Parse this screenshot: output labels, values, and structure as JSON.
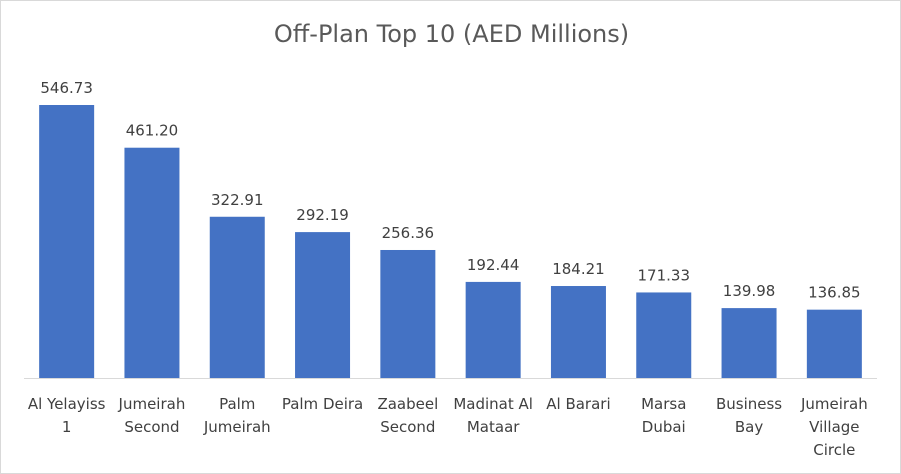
{
  "chart_data": {
    "type": "bar",
    "title": "Off-Plan Top 10 (AED Millions)",
    "categories": [
      [
        "Al Yelayiss",
        "1"
      ],
      [
        "Jumeirah",
        "Second"
      ],
      [
        "Palm",
        "Jumeirah"
      ],
      [
        "Palm Deira"
      ],
      [
        "Zaabeel",
        "Second"
      ],
      [
        "Madinat Al",
        "Mataar"
      ],
      [
        "Al Barari"
      ],
      [
        "Marsa",
        "Dubai"
      ],
      [
        "Business",
        "Bay"
      ],
      [
        "Jumeirah",
        "Village",
        "Circle"
      ]
    ],
    "values": [
      546.73,
      461.2,
      322.91,
      292.19,
      256.36,
      192.44,
      184.21,
      171.33,
      139.98,
      136.85
    ],
    "value_labels": [
      "546.73",
      "461.20",
      "322.91",
      "292.19",
      "256.36",
      "192.44",
      "184.21",
      "171.33",
      "139.98",
      "136.85"
    ],
    "xlabel": "",
    "ylabel": "",
    "ylim": [
      0,
      546.73
    ],
    "grid": false,
    "legend": "none",
    "bar_color": "#4472C4",
    "axis_color": "#d9d9d9"
  }
}
